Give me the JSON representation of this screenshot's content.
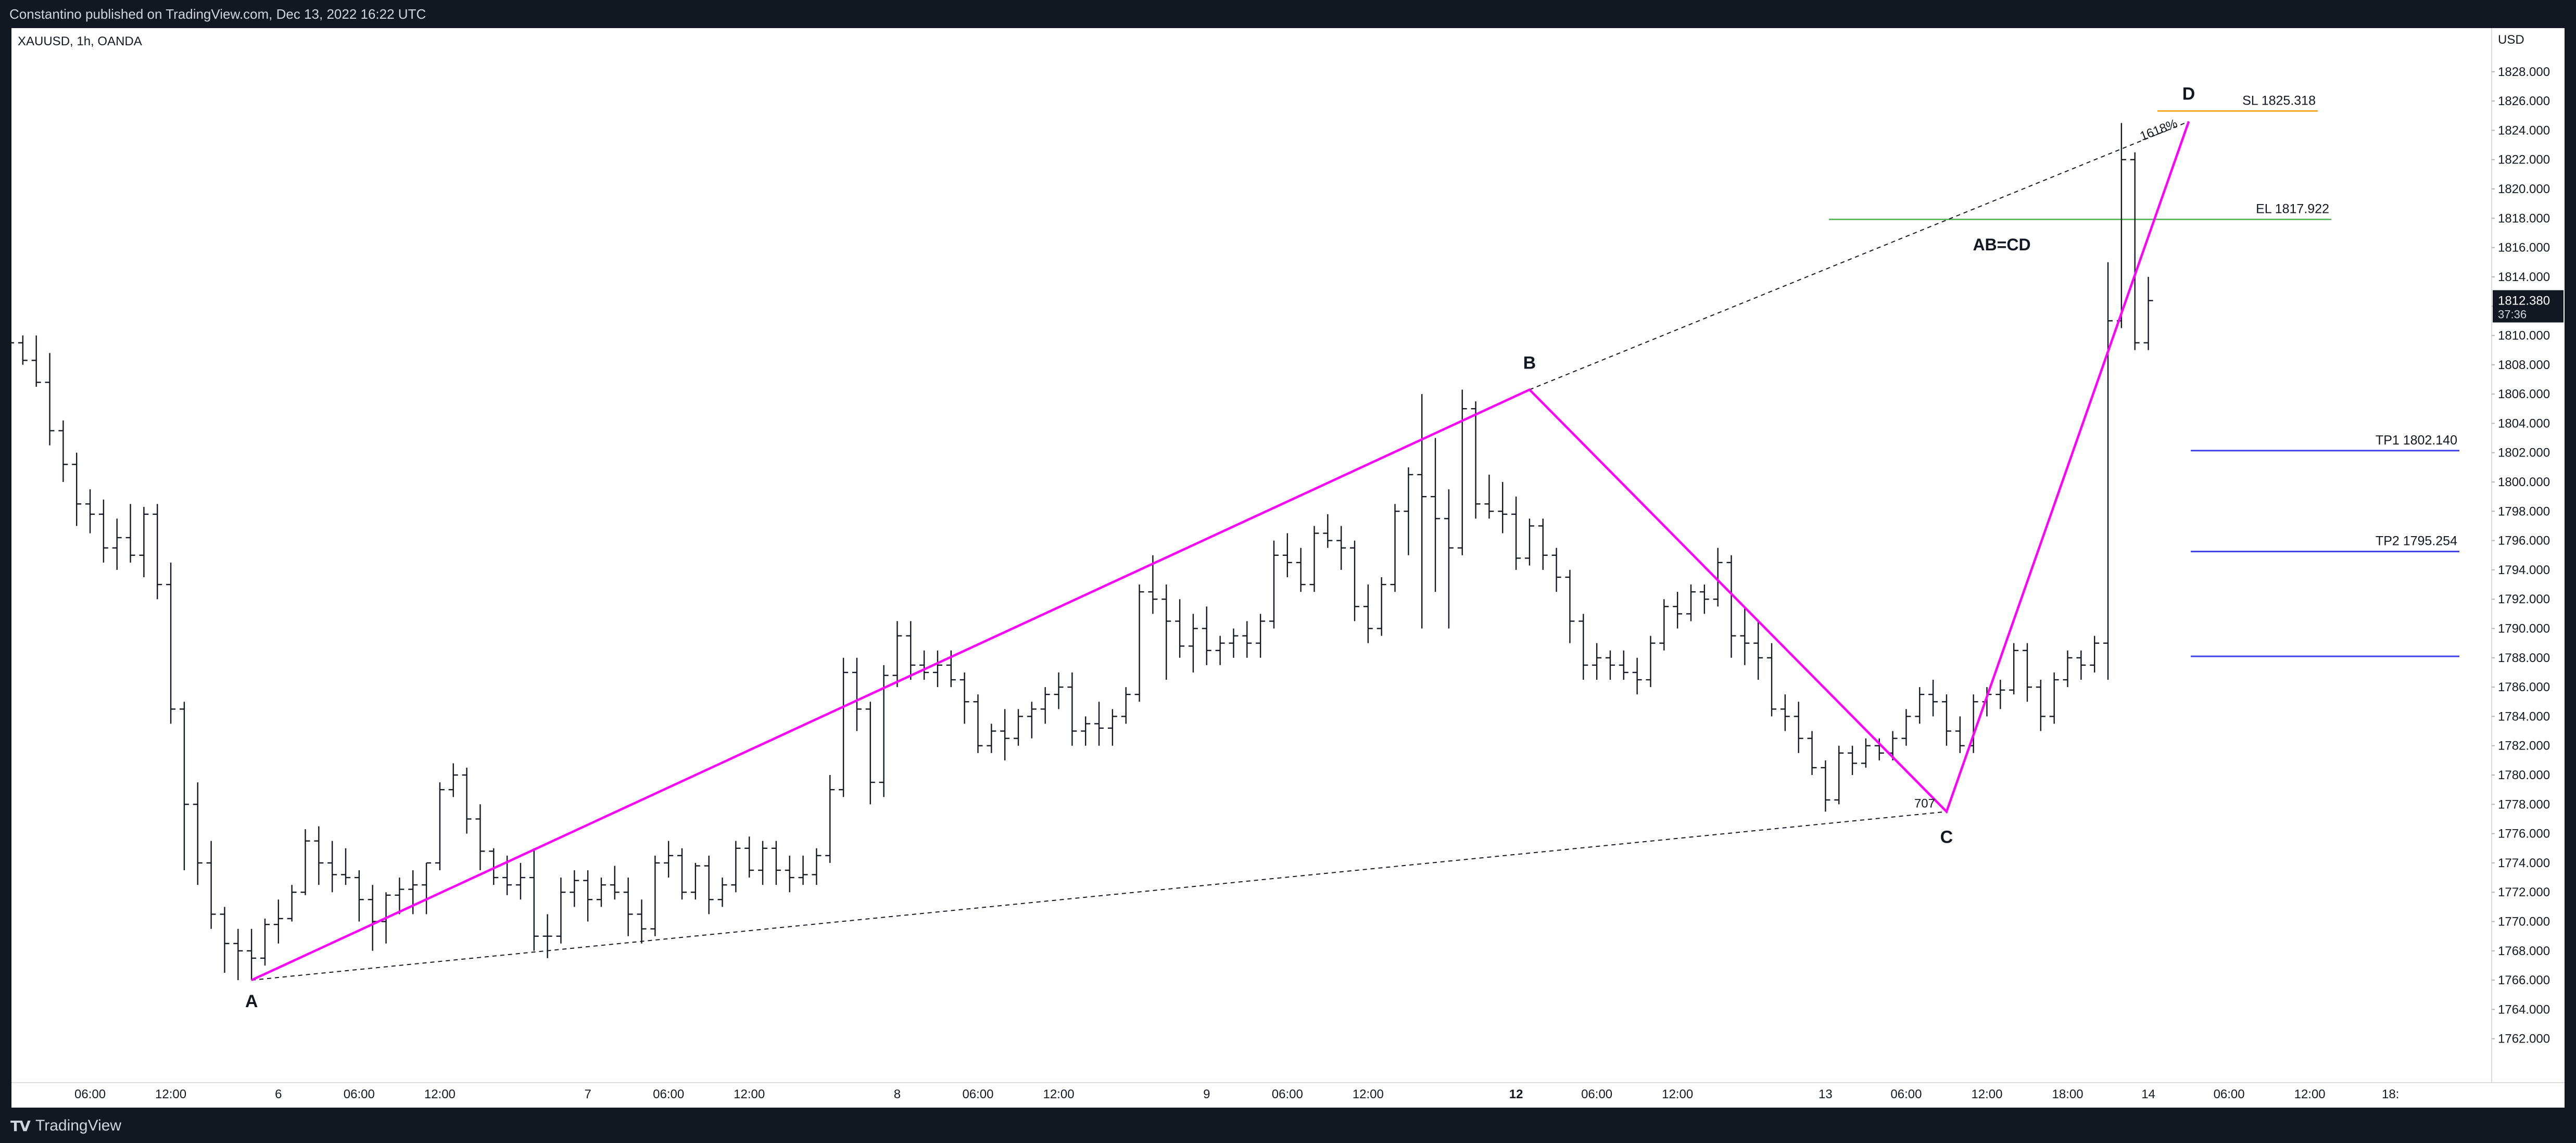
{
  "header": {
    "published": "Constantino published on TradingView.com, Dec 13, 2022 16:22 UTC"
  },
  "footer": {
    "brand": "TradingView"
  },
  "colors": {
    "frame": "#131722",
    "pattern": "#ff00ff",
    "sl": "#ff9800",
    "el": "#4caf50",
    "tp": "#3f3fe8",
    "fill": "#d6ecd9"
  },
  "chart_data": {
    "type": "ohlc",
    "symbol": "XAUUSD, 1h, OANDA",
    "currency": "USD",
    "ylim": [
      1760.0,
      1830.5
    ],
    "y_ticks": [
      "1762.000",
      "1764.000",
      "1766.000",
      "1768.000",
      "1770.000",
      "1772.000",
      "1774.000",
      "1776.000",
      "1778.000",
      "1780.000",
      "1782.000",
      "1784.000",
      "1786.000",
      "1788.000",
      "1790.000",
      "1792.000",
      "1794.000",
      "1796.000",
      "1798.000",
      "1800.000",
      "1802.000",
      "1804.000",
      "1806.000",
      "1808.000",
      "1810.000",
      "1812.000",
      "1814.000",
      "1816.000",
      "1818.000",
      "1820.000",
      "1822.000",
      "1824.000",
      "1826.000",
      "1828.000"
    ],
    "x_ticks": [
      {
        "label": "06:00",
        "i": 6,
        "bold": false
      },
      {
        "label": "12:00",
        "i": 12,
        "bold": false
      },
      {
        "label": "6",
        "i": 20,
        "bold": false
      },
      {
        "label": "06:00",
        "i": 26,
        "bold": false
      },
      {
        "label": "12:00",
        "i": 32,
        "bold": false
      },
      {
        "label": "7",
        "i": 43,
        "bold": false
      },
      {
        "label": "06:00",
        "i": 49,
        "bold": false
      },
      {
        "label": "12:00",
        "i": 55,
        "bold": false
      },
      {
        "label": "8",
        "i": 66,
        "bold": false
      },
      {
        "label": "06:00",
        "i": 72,
        "bold": false
      },
      {
        "label": "12:00",
        "i": 78,
        "bold": false
      },
      {
        "label": "9",
        "i": 89,
        "bold": false
      },
      {
        "label": "06:00",
        "i": 95,
        "bold": false
      },
      {
        "label": "12:00",
        "i": 101,
        "bold": false
      },
      {
        "label": "12",
        "i": 112,
        "bold": true
      },
      {
        "label": "06:00",
        "i": 118,
        "bold": false
      },
      {
        "label": "12:00",
        "i": 124,
        "bold": false
      },
      {
        "label": "13",
        "i": 135,
        "bold": false
      },
      {
        "label": "06:00",
        "i": 141,
        "bold": false
      },
      {
        "label": "12:00",
        "i": 147,
        "bold": false
      },
      {
        "label": "18:00",
        "i": 153,
        "bold": false
      },
      {
        "label": "14",
        "i": 159,
        "bold": false
      },
      {
        "label": "06:00",
        "i": 165,
        "bold": false
      },
      {
        "label": "12:00",
        "i": 171,
        "bold": false
      },
      {
        "label": "18:",
        "i": 177,
        "bold": false
      }
    ],
    "ohlc": [
      [
        1809,
        1810.2,
        1807.5,
        1809.5
      ],
      [
        1809.5,
        1810,
        1808,
        1808.3
      ],
      [
        1808.3,
        1810,
        1806.5,
        1806.8
      ],
      [
        1806.8,
        1808.8,
        1802.5,
        1803.5
      ],
      [
        1803.5,
        1804.2,
        1800,
        1801.2
      ],
      [
        1801.2,
        1802,
        1797,
        1798.5
      ],
      [
        1798.5,
        1799.5,
        1796.5,
        1797.8
      ],
      [
        1797.8,
        1798.8,
        1794.5,
        1795.5
      ],
      [
        1795.5,
        1797.5,
        1794,
        1796.2
      ],
      [
        1796.2,
        1798.5,
        1794.5,
        1795
      ],
      [
        1795,
        1798.3,
        1793.5,
        1797.8
      ],
      [
        1797.8,
        1798.5,
        1792,
        1793
      ],
      [
        1793,
        1794.5,
        1783.5,
        1784.5
      ],
      [
        1784.5,
        1785,
        1773.5,
        1778
      ],
      [
        1778,
        1779.5,
        1772.5,
        1774
      ],
      [
        1774,
        1775.5,
        1769.5,
        1770.5
      ],
      [
        1770.5,
        1771,
        1766.5,
        1768.5
      ],
      [
        1768.5,
        1769.5,
        1766,
        1768
      ],
      [
        1768,
        1769.5,
        1766,
        1767.5
      ],
      [
        1767.5,
        1770.2,
        1767,
        1769.8
      ],
      [
        1769.8,
        1771.5,
        1768.5,
        1770.2
      ],
      [
        1770.2,
        1772.5,
        1770,
        1772
      ],
      [
        1772,
        1776.3,
        1771.8,
        1775.5
      ],
      [
        1775.5,
        1776.5,
        1772.5,
        1774
      ],
      [
        1774,
        1775.5,
        1772,
        1773.2
      ],
      [
        1773.2,
        1775,
        1772.5,
        1773
      ],
      [
        1773,
        1773.5,
        1770,
        1771.5
      ],
      [
        1771.5,
        1772.5,
        1768,
        1770
      ],
      [
        1770,
        1772,
        1768.5,
        1771.8
      ],
      [
        1771.8,
        1773,
        1770.5,
        1772.2
      ],
      [
        1772.2,
        1773.5,
        1770.5,
        1772.5
      ],
      [
        1772.5,
        1774,
        1770.5,
        1774
      ],
      [
        1774,
        1779.5,
        1773.5,
        1779
      ],
      [
        1779,
        1780.8,
        1778.5,
        1780
      ],
      [
        1780,
        1780.5,
        1776,
        1777
      ],
      [
        1777,
        1778,
        1773.5,
        1774.8
      ],
      [
        1774.8,
        1775,
        1772.5,
        1773
      ],
      [
        1773,
        1774.5,
        1771.8,
        1772.5
      ],
      [
        1772.5,
        1774,
        1771.5,
        1773
      ],
      [
        1773,
        1775,
        1768,
        1769
      ],
      [
        1769,
        1770.5,
        1767.5,
        1769
      ],
      [
        1769,
        1773,
        1768.5,
        1772
      ],
      [
        1772,
        1773.5,
        1771,
        1772.8
      ],
      [
        1772.8,
        1773.5,
        1770,
        1771.5
      ],
      [
        1771.5,
        1773,
        1771,
        1772.5
      ],
      [
        1772.5,
        1773.8,
        1771.5,
        1772
      ],
      [
        1772,
        1773,
        1769,
        1770.5
      ],
      [
        1770.5,
        1771.5,
        1768.5,
        1769.5
      ],
      [
        1769.5,
        1774.5,
        1769,
        1774
      ],
      [
        1774,
        1775.5,
        1773,
        1774.5
      ],
      [
        1774.5,
        1775,
        1771.5,
        1772
      ],
      [
        1772,
        1774,
        1771.5,
        1773.8
      ],
      [
        1773.8,
        1774.5,
        1770.5,
        1771.5
      ],
      [
        1771.5,
        1773,
        1771,
        1772.5
      ],
      [
        1772.5,
        1775.5,
        1772,
        1775
      ],
      [
        1775,
        1775.8,
        1773,
        1773.5
      ],
      [
        1773.5,
        1775.5,
        1772.5,
        1775
      ],
      [
        1775,
        1775.5,
        1772.5,
        1773.5
      ],
      [
        1773.5,
        1774.5,
        1772,
        1773
      ],
      [
        1773,
        1774.5,
        1772.5,
        1773.2
      ],
      [
        1773.2,
        1775,
        1772.5,
        1774.5
      ],
      [
        1774.5,
        1780,
        1774,
        1779
      ],
      [
        1779,
        1788,
        1778.5,
        1787
      ],
      [
        1787,
        1788,
        1783,
        1784.5
      ],
      [
        1784.5,
        1785,
        1778,
        1779.5
      ],
      [
        1779.5,
        1787.5,
        1778.5,
        1786.8
      ],
      [
        1786.8,
        1790.5,
        1786,
        1789.5
      ],
      [
        1789.5,
        1790.5,
        1786.5,
        1787.5
      ],
      [
        1787.5,
        1788.5,
        1786.5,
        1787
      ],
      [
        1787,
        1788.5,
        1786,
        1787.5
      ],
      [
        1787.5,
        1788.5,
        1786,
        1786.5
      ],
      [
        1786.5,
        1787,
        1783.5,
        1785
      ],
      [
        1785,
        1785.5,
        1781.5,
        1782
      ],
      [
        1782,
        1783.5,
        1781.5,
        1783
      ],
      [
        1783,
        1784.5,
        1781,
        1782.5
      ],
      [
        1782.5,
        1784.5,
        1782,
        1784
      ],
      [
        1784,
        1785,
        1782.5,
        1784.5
      ],
      [
        1784.5,
        1786,
        1783.5,
        1785.5
      ],
      [
        1785.5,
        1787,
        1784.5,
        1786
      ],
      [
        1786,
        1787,
        1782,
        1783
      ],
      [
        1783,
        1784,
        1782,
        1783.5
      ],
      [
        1783.5,
        1785,
        1782,
        1783.2
      ],
      [
        1783.2,
        1784.5,
        1782,
        1784
      ],
      [
        1784,
        1786,
        1783.5,
        1785.5
      ],
      [
        1785.5,
        1793,
        1785,
        1792.5
      ],
      [
        1792.5,
        1795,
        1791,
        1792
      ],
      [
        1792,
        1793,
        1786.5,
        1790.5
      ],
      [
        1790.5,
        1792,
        1788,
        1788.8
      ],
      [
        1788.8,
        1791,
        1787,
        1790
      ],
      [
        1790,
        1791.5,
        1787.5,
        1788.5
      ],
      [
        1788.5,
        1789.5,
        1787.5,
        1789
      ],
      [
        1789,
        1790,
        1788,
        1789.5
      ],
      [
        1789.5,
        1790.5,
        1788,
        1789
      ],
      [
        1789,
        1791,
        1788,
        1790.5
      ],
      [
        1790.5,
        1796,
        1790,
        1795
      ],
      [
        1795,
        1796.5,
        1793.5,
        1794.5
      ],
      [
        1794.5,
        1795.5,
        1792.5,
        1793
      ],
      [
        1793,
        1797,
        1792.5,
        1796.5
      ],
      [
        1796.5,
        1797.8,
        1795.5,
        1796
      ],
      [
        1796,
        1797,
        1794,
        1795.5
      ],
      [
        1795.5,
        1796,
        1790.5,
        1791.5
      ],
      [
        1791.5,
        1793,
        1789,
        1790
      ],
      [
        1790,
        1793.5,
        1789.5,
        1793
      ],
      [
        1793,
        1798.5,
        1792.5,
        1798
      ],
      [
        1798,
        1801,
        1795,
        1800.5
      ],
      [
        1800.5,
        1806,
        1790,
        1799
      ],
      [
        1799,
        1803,
        1792.5,
        1797.5
      ],
      [
        1797.5,
        1799.5,
        1790,
        1795.5
      ],
      [
        1795.5,
        1806.3,
        1795,
        1805
      ],
      [
        1805,
        1805.5,
        1797.5,
        1798.5
      ],
      [
        1798.5,
        1800.5,
        1797.5,
        1798
      ],
      [
        1798,
        1800,
        1796.5,
        1797.8
      ],
      [
        1797.8,
        1799,
        1794,
        1794.8
      ],
      [
        1794.8,
        1797.5,
        1794.3,
        1797
      ],
      [
        1797,
        1797.5,
        1794,
        1795
      ],
      [
        1795,
        1795.5,
        1792.5,
        1793.5
      ],
      [
        1793.5,
        1794,
        1789,
        1790.5
      ],
      [
        1790.5,
        1791,
        1786.5,
        1787.5
      ],
      [
        1787.5,
        1789,
        1786.5,
        1788
      ],
      [
        1788,
        1788.5,
        1786.5,
        1787.5
      ],
      [
        1787.5,
        1788.5,
        1786.5,
        1787
      ],
      [
        1787,
        1788,
        1785.5,
        1786.5
      ],
      [
        1786.5,
        1789.5,
        1786,
        1789
      ],
      [
        1789,
        1792,
        1788.5,
        1791.5
      ],
      [
        1791.5,
        1792.5,
        1790,
        1791
      ],
      [
        1791,
        1793,
        1790.5,
        1792.5
      ],
      [
        1792.5,
        1793,
        1791,
        1792
      ],
      [
        1792,
        1795.5,
        1791.5,
        1794.5
      ],
      [
        1794.5,
        1795,
        1788,
        1789.5
      ],
      [
        1789.5,
        1791.5,
        1787.5,
        1789
      ],
      [
        1789,
        1790.5,
        1786.5,
        1788
      ],
      [
        1788,
        1789,
        1784,
        1784.5
      ],
      [
        1784.5,
        1785.5,
        1783,
        1784
      ],
      [
        1784,
        1785,
        1781.5,
        1782.5
      ],
      [
        1782.5,
        1783,
        1780,
        1780.5
      ],
      [
        1780.5,
        1781,
        1777.5,
        1778.3
      ],
      [
        1778.3,
        1782,
        1778,
        1781.5
      ],
      [
        1781.5,
        1782,
        1780,
        1780.8
      ],
      [
        1780.8,
        1782.5,
        1780.5,
        1782
      ],
      [
        1782,
        1782.5,
        1781,
        1781.5
      ],
      [
        1781.5,
        1783,
        1781,
        1782.5
      ],
      [
        1782.5,
        1784.5,
        1782,
        1784
      ],
      [
        1784,
        1786,
        1783.5,
        1785.5
      ],
      [
        1785.5,
        1786.5,
        1784,
        1785
      ],
      [
        1785,
        1785.5,
        1782,
        1783
      ],
      [
        1783,
        1784,
        1781.5,
        1782
      ],
      [
        1782,
        1785.5,
        1781.5,
        1785
      ],
      [
        1785,
        1786,
        1784,
        1785.5
      ],
      [
        1785.5,
        1786.5,
        1784.5,
        1785.8
      ],
      [
        1785.8,
        1789,
        1785.5,
        1788.5
      ],
      [
        1788.5,
        1789,
        1785,
        1786
      ],
      [
        1786,
        1786.5,
        1783,
        1784
      ],
      [
        1784,
        1787,
        1783.5,
        1786.5
      ],
      [
        1786.5,
        1788.5,
        1786,
        1788
      ],
      [
        1788,
        1788.5,
        1786.5,
        1787.5
      ],
      [
        1787.5,
        1789.5,
        1787,
        1789
      ],
      [
        1789,
        1815,
        1786.5,
        1811
      ],
      [
        1811,
        1824.5,
        1810.5,
        1822
      ],
      [
        1822,
        1822.5,
        1809,
        1809.5
      ],
      [
        1809.5,
        1814,
        1809,
        1812.38
      ]
    ],
    "pattern": {
      "points": [
        {
          "label": "A",
          "i": 18,
          "y": 1766.0
        },
        {
          "label": "B",
          "i": 113,
          "y": 1806.3
        },
        {
          "label": "C",
          "i": 144,
          "y": 1777.5
        },
        {
          "label": "D",
          "i": 162,
          "y": 1824.6
        }
      ],
      "retrace_c": "707",
      "extension_d": "1618%",
      "caption": "AB=CD"
    },
    "levels": [
      {
        "label": "SL 1825.318",
        "value": 1825.318,
        "kind": "sl"
      },
      {
        "label": "EL 1817.922",
        "value": 1817.922,
        "kind": "el"
      },
      {
        "label": "TP1 1802.140",
        "value": 1802.14,
        "kind": "tp"
      },
      {
        "label": "TP2 1795.254",
        "value": 1795.254,
        "kind": "tp"
      },
      {
        "label": "",
        "value": 1788.1,
        "kind": "tp"
      }
    ],
    "last_price": {
      "value": 1812.38,
      "label": "1812.380",
      "countdown": "37:36"
    }
  }
}
